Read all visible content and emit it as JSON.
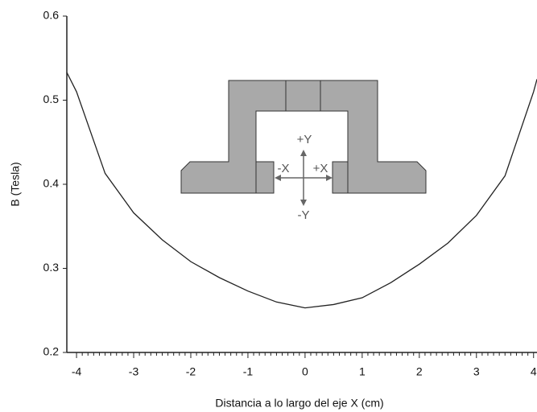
{
  "chart_data": {
    "type": "line",
    "x_label": "Distancia a lo largo del eje X (cm)",
    "y_label": "B (Tesla)",
    "x": [
      -4.17,
      -4,
      -3.5,
      -3,
      -2.5,
      -2,
      -1.5,
      -1,
      -0.5,
      0,
      0.5,
      1,
      1.5,
      2,
      2.5,
      3,
      3.5,
      4,
      4.06
    ],
    "series": [
      {
        "color": "#222222",
        "values": [
          0.533,
          0.51,
          0.413,
          0.366,
          0.334,
          0.308,
          0.289,
          0.273,
          0.26,
          0.253,
          0.257,
          0.265,
          0.283,
          0.305,
          0.33,
          0.363,
          0.41,
          0.51,
          0.525
        ]
      }
    ],
    "xlim": [
      -4.17,
      4.06
    ],
    "xticks": [
      -4,
      -3,
      -2,
      -1,
      0,
      1,
      2,
      3,
      4
    ],
    "ylim": [
      0.2,
      0.6
    ],
    "yticks": [
      0.2,
      0.3,
      0.4,
      0.5,
      0.6
    ],
    "annotations": [
      "+Y",
      "-X",
      "+X",
      "-Y"
    ]
  }
}
